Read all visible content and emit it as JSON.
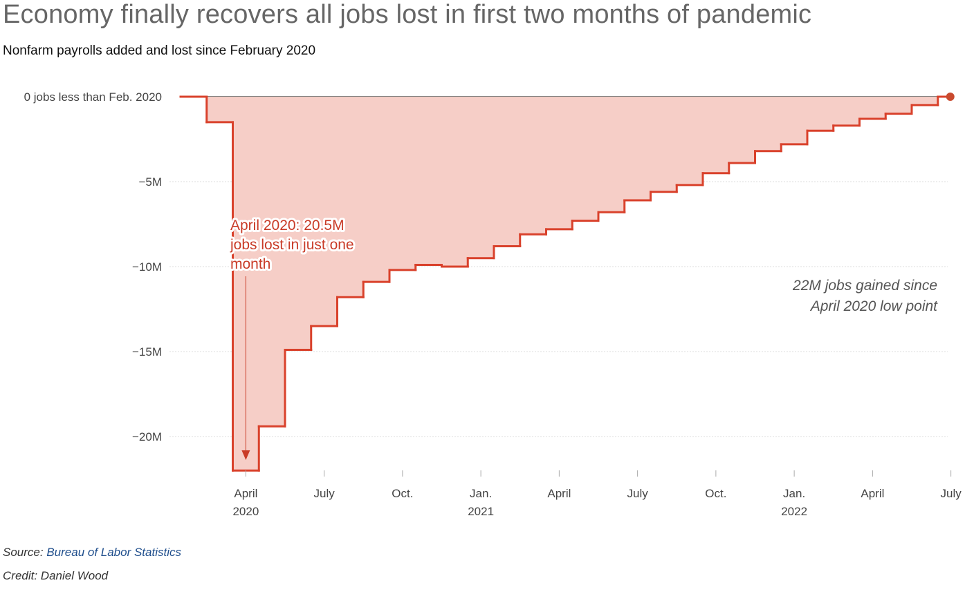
{
  "title": "Economy finally recovers all jobs lost in first two months of pandemic",
  "subtitle": "Nonfarm payrolls added and lost since February 2020",
  "footer": {
    "source_label": "Source:",
    "source_name": "Bureau of Labor Statistics",
    "credit": "Credit: Daniel Wood"
  },
  "colors": {
    "line": "#d9412b",
    "fill": "#f6cbc4",
    "zero_line": "#555555",
    "grid": "#dddddd"
  },
  "chart_data": {
    "type": "area",
    "title": "Economy finally recovers all jobs lost in first two months of pandemic",
    "subtitle": "Nonfarm payrolls added and lost since February 2020",
    "xlabel": "",
    "ylabel": "",
    "ylim": [
      -22.5,
      0.5
    ],
    "y_unit": "millions of jobs relative to Feb. 2020",
    "step": true,
    "grid": true,
    "x": [
      "2020-02",
      "2020-03",
      "2020-04",
      "2020-05",
      "2020-06",
      "2020-07",
      "2020-08",
      "2020-09",
      "2020-10",
      "2020-11",
      "2020-12",
      "2021-01",
      "2021-02",
      "2021-03",
      "2021-04",
      "2021-05",
      "2021-06",
      "2021-07",
      "2021-08",
      "2021-09",
      "2021-10",
      "2021-11",
      "2021-12",
      "2022-01",
      "2022-02",
      "2022-03",
      "2022-04",
      "2022-05",
      "2022-06",
      "2022-07"
    ],
    "values": [
      0,
      -1.5,
      -22.0,
      -19.4,
      -14.9,
      -13.5,
      -11.8,
      -10.9,
      -10.2,
      -9.9,
      -10.0,
      -9.5,
      -8.8,
      -8.1,
      -7.8,
      -7.3,
      -6.8,
      -6.1,
      -5.6,
      -5.2,
      -4.5,
      -3.9,
      -3.2,
      -2.8,
      -2.0,
      -1.7,
      -1.3,
      -1.0,
      -0.5,
      0.0
    ]
  },
  "axes": {
    "y_ticks": [
      {
        "value": 0,
        "label": "0 jobs less than Feb. 2020"
      },
      {
        "value": -5,
        "label": "−5M"
      },
      {
        "value": -10,
        "label": "−10M"
      },
      {
        "value": -15,
        "label": "−15M"
      },
      {
        "value": -20,
        "label": "−20M"
      }
    ],
    "x_ticks": [
      {
        "month": "2020-04",
        "label": "April",
        "year": "2020"
      },
      {
        "month": "2020-07",
        "label": "July",
        "year": ""
      },
      {
        "month": "2020-10",
        "label": "Oct.",
        "year": ""
      },
      {
        "month": "2021-01",
        "label": "Jan.",
        "year": "2021"
      },
      {
        "month": "2021-04",
        "label": "April",
        "year": ""
      },
      {
        "month": "2021-07",
        "label": "July",
        "year": ""
      },
      {
        "month": "2021-10",
        "label": "Oct.",
        "year": ""
      },
      {
        "month": "2022-01",
        "label": "Jan.",
        "year": "2022"
      },
      {
        "month": "2022-04",
        "label": "April",
        "year": ""
      },
      {
        "month": "2022-07",
        "label": "July",
        "year": ""
      }
    ]
  },
  "annotations": {
    "loss": [
      "April 2020: 20.5M",
      "jobs lost in just one",
      "month"
    ],
    "gain": [
      "22M jobs gained since",
      "April 2020 low point"
    ]
  }
}
